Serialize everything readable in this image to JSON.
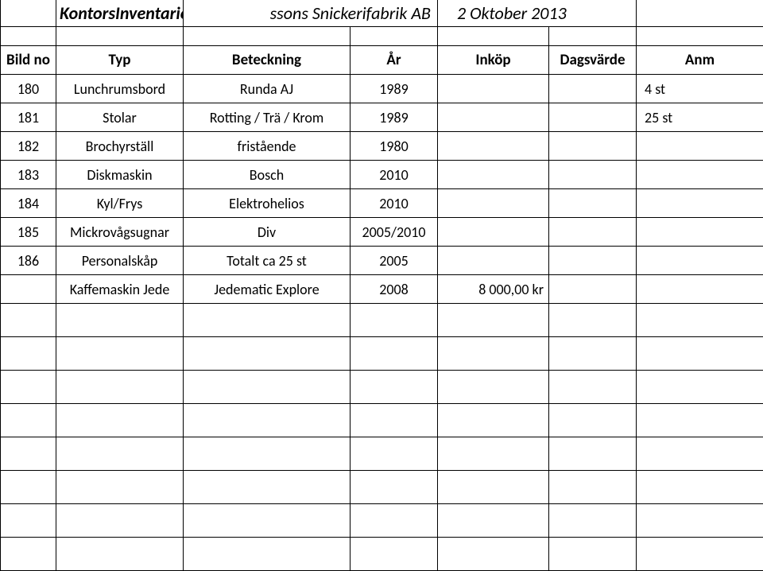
{
  "title": {
    "left": "KontorsInventarier",
    "mid": "ssons Snickerifabrik AB",
    "right": "2 Oktober 2013"
  },
  "headers": {
    "bild_no": "Bild no",
    "typ": "Typ",
    "beteckning": "Beteckning",
    "ar": "År",
    "inkop": "Inköp",
    "dagsvarde": "Dagsvärde",
    "anm": "Anm"
  },
  "rows": [
    {
      "no": "180",
      "typ": "Lunchrumsbord",
      "bet": "Runda AJ",
      "ar": "1989",
      "inkop": "",
      "dags": "",
      "anm": "4 st"
    },
    {
      "no": "181",
      "typ": "Stolar",
      "bet": "Rotting / Trä / Krom",
      "ar": "1989",
      "inkop": "",
      "dags": "",
      "anm": "25 st"
    },
    {
      "no": "182",
      "typ": "Brochyrställ",
      "bet": "fristående",
      "ar": "1980",
      "inkop": "",
      "dags": "",
      "anm": ""
    },
    {
      "no": "183",
      "typ": "Diskmaskin",
      "bet": "Bosch",
      "ar": "2010",
      "inkop": "",
      "dags": "",
      "anm": ""
    },
    {
      "no": "184",
      "typ": "Kyl/Frys",
      "bet": "Elektrohelios",
      "ar": "2010",
      "inkop": "",
      "dags": "",
      "anm": ""
    },
    {
      "no": "185",
      "typ": "Mickrovågsugnar",
      "bet": "Div",
      "ar": "2005/2010",
      "inkop": "",
      "dags": "",
      "anm": ""
    },
    {
      "no": "186",
      "typ": "Personalskåp",
      "bet": "Totalt ca 25 st",
      "ar": "2005",
      "inkop": "",
      "dags": "",
      "anm": ""
    },
    {
      "no": "",
      "typ": "Kaffemaskin Jede",
      "bet": "Jedematic Explore",
      "ar": "2008",
      "inkop": "8 000,00 kr",
      "dags": "",
      "anm": ""
    }
  ],
  "empty_row_count": 8,
  "style": {
    "border_color": "#000000",
    "bg": "#ffffff",
    "font_data": 18,
    "font_title": 22,
    "font_header": 19
  }
}
